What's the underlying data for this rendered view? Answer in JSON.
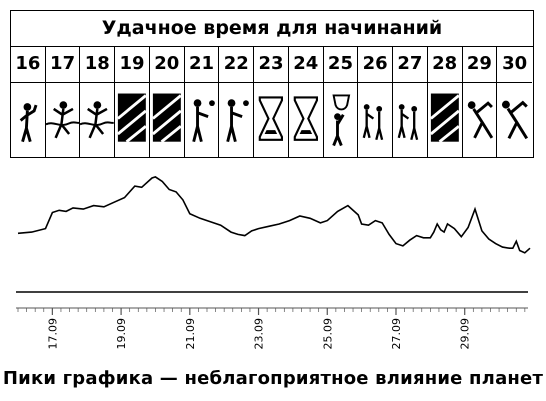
{
  "calendar": {
    "title": "Удачное время для начинаний",
    "days": [
      {
        "num": "16",
        "icon": "thinking-man-icon",
        "unfavorable": false
      },
      {
        "num": "17",
        "icon": "finish-runner-icon",
        "unfavorable": false
      },
      {
        "num": "18",
        "icon": "finish-runner-icon",
        "unfavorable": false
      },
      {
        "num": "19",
        "icon": "unfavorable-day-icon",
        "unfavorable": true
      },
      {
        "num": "20",
        "icon": "unfavorable-day-icon",
        "unfavorable": true
      },
      {
        "num": "21",
        "icon": "handshake-icon",
        "unfavorable": false
      },
      {
        "num": "22",
        "icon": "handshake-icon",
        "unfavorable": false
      },
      {
        "num": "23",
        "icon": "hourglass-icon",
        "unfavorable": false
      },
      {
        "num": "24",
        "icon": "hourglass-icon",
        "unfavorable": false
      },
      {
        "num": "25",
        "icon": "trophy-icon",
        "unfavorable": false
      },
      {
        "num": "26",
        "icon": "family-home-icon",
        "unfavorable": false
      },
      {
        "num": "27",
        "icon": "family-home-icon",
        "unfavorable": false
      },
      {
        "num": "28",
        "icon": "unfavorable-day-icon",
        "unfavorable": true
      },
      {
        "num": "29",
        "icon": "stretching-man-icon",
        "unfavorable": false
      },
      {
        "num": "30",
        "icon": "stretching-man-icon",
        "unfavorable": false
      }
    ]
  },
  "chart_data": {
    "type": "line",
    "xlim": [
      16.0,
      30.9
    ],
    "ylim": [
      0,
      10
    ],
    "x": [
      16.0,
      16.4,
      16.8,
      17.0,
      17.2,
      17.4,
      17.6,
      17.9,
      18.2,
      18.5,
      18.8,
      19.1,
      19.4,
      19.6,
      19.9,
      20.0,
      20.2,
      20.4,
      20.6,
      20.8,
      21.0,
      21.3,
      21.6,
      21.9,
      22.2,
      22.4,
      22.6,
      22.8,
      23.0,
      23.3,
      23.6,
      23.9,
      24.2,
      24.5,
      24.8,
      25.0,
      25.3,
      25.6,
      25.9,
      26.0,
      26.2,
      26.4,
      26.6,
      26.8,
      27.0,
      27.2,
      27.4,
      27.6,
      27.8,
      28.0,
      28.1,
      28.2,
      28.3,
      28.4,
      28.5,
      28.7,
      28.9,
      29.1,
      29.3,
      29.5,
      29.7,
      29.9,
      30.1,
      30.3,
      30.4,
      30.5,
      30.6,
      30.75,
      30.9
    ],
    "y": [
      4.5,
      4.6,
      4.9,
      6.3,
      6.5,
      6.4,
      6.7,
      6.6,
      6.9,
      6.8,
      7.2,
      7.6,
      8.6,
      8.5,
      9.3,
      9.4,
      9.0,
      8.3,
      8.1,
      7.4,
      6.2,
      5.8,
      5.5,
      5.2,
      4.6,
      4.4,
      4.3,
      4.7,
      4.9,
      5.1,
      5.3,
      5.6,
      6.0,
      5.8,
      5.4,
      5.6,
      6.4,
      6.9,
      6.1,
      5.3,
      5.2,
      5.6,
      5.4,
      4.4,
      3.6,
      3.4,
      3.9,
      4.3,
      4.1,
      4.1,
      4.6,
      5.3,
      4.8,
      4.6,
      5.3,
      4.9,
      4.2,
      5.0,
      6.6,
      4.7,
      4.0,
      3.6,
      3.3,
      3.2,
      3.2,
      3.8,
      3.0,
      2.8,
      3.2
    ],
    "x_ticks": [
      "17.09",
      "19.09",
      "21.09",
      "23.09",
      "25.09",
      "27.09",
      "29.09"
    ],
    "x_tick_values": [
      17,
      19,
      21,
      23,
      25,
      27,
      29
    ]
  },
  "caption": "Пики графика — неблагоприятное влияние планет"
}
